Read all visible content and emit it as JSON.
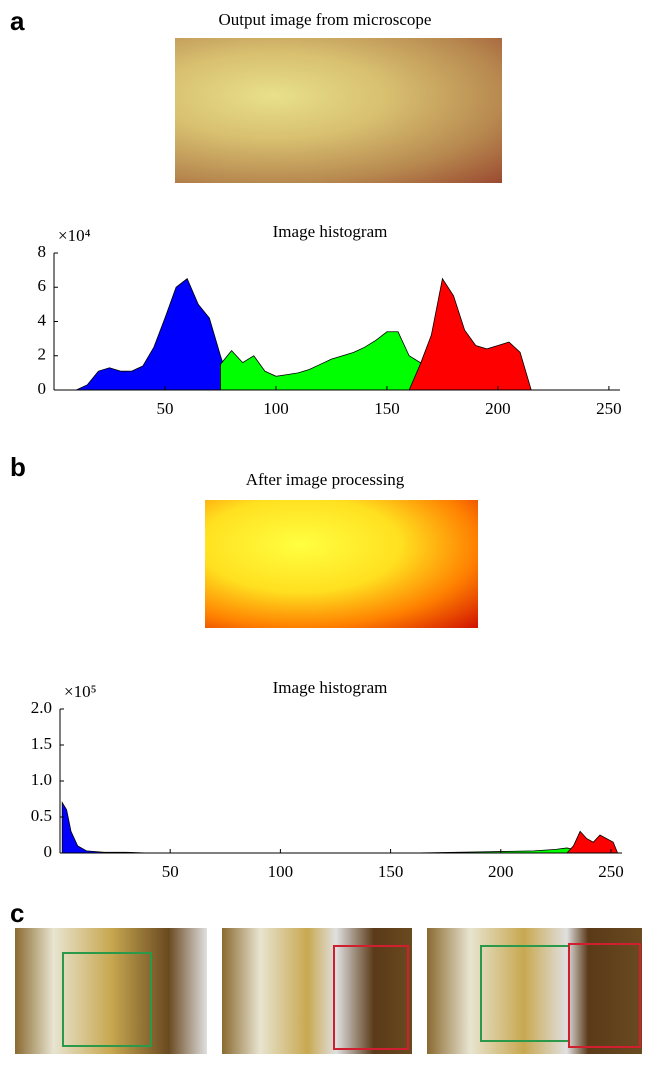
{
  "panel_labels": [
    "a",
    "b",
    "c"
  ],
  "image_captions": [
    "Output image from microscope",
    "After  image processing"
  ],
  "chart_data": [
    {
      "type": "area",
      "title": "Image histogram",
      "y_scale_label": "×10⁴",
      "x": [
        10,
        15,
        20,
        25,
        30,
        35,
        40,
        45,
        50,
        55,
        60,
        65,
        70,
        75,
        80,
        85,
        90,
        95,
        100,
        105,
        110,
        115,
        120,
        125,
        130,
        135,
        140,
        145,
        150,
        155,
        160,
        165,
        170,
        175,
        180,
        185,
        190,
        195,
        200,
        205,
        210,
        215
      ],
      "series": [
        {
          "color": "#0000ff",
          "values": [
            0,
            0.3,
            1.1,
            1.3,
            1.1,
            1.1,
            1.4,
            2.5,
            4.2,
            6.0,
            6.5,
            5.0,
            4.2,
            2.0,
            0,
            null,
            null,
            null,
            null,
            null,
            null,
            null,
            null,
            null,
            null,
            null,
            null,
            null,
            null,
            null,
            null,
            null,
            null,
            null,
            null,
            null,
            null,
            null,
            null,
            null,
            null,
            null
          ]
        },
        {
          "color": "#00ff00",
          "values": [
            null,
            null,
            null,
            null,
            null,
            null,
            null,
            null,
            null,
            null,
            null,
            null,
            null,
            1.5,
            2.3,
            1.6,
            2.0,
            1.1,
            0.8,
            0.9,
            1.0,
            1.2,
            1.5,
            1.8,
            2.0,
            2.2,
            2.5,
            2.9,
            3.4,
            3.4,
            2.0,
            1.6,
            1.2,
            0,
            null,
            null,
            null,
            null,
            null,
            null,
            null,
            null
          ]
        },
        {
          "color": "#ff0000",
          "values": [
            null,
            null,
            null,
            null,
            null,
            null,
            null,
            null,
            null,
            null,
            null,
            null,
            null,
            null,
            null,
            null,
            null,
            null,
            null,
            null,
            null,
            null,
            null,
            null,
            null,
            null,
            null,
            null,
            null,
            null,
            0,
            1.5,
            3.2,
            6.5,
            5.5,
            3.5,
            2.6,
            2.4,
            2.6,
            2.8,
            2.2,
            0
          ]
        }
      ],
      "xlim": [
        0,
        255
      ],
      "ylim": [
        0,
        8
      ],
      "xticks": [
        50,
        100,
        150,
        200,
        250
      ],
      "yticks": [
        0,
        2,
        4,
        6,
        8
      ]
    },
    {
      "type": "area",
      "title": "Image histogram",
      "y_scale_label": "×10⁵",
      "x": [
        1,
        3,
        5,
        8,
        12,
        20,
        30,
        40,
        160,
        180,
        200,
        215,
        225,
        230,
        233,
        236,
        239,
        242,
        245,
        248,
        251,
        253
      ],
      "series": [
        {
          "color": "#0000ff",
          "values": [
            0.7,
            0.6,
            0.3,
            0.1,
            0.03,
            0.01,
            0.01,
            0,
            null,
            null,
            null,
            null,
            null,
            null,
            null,
            null,
            null,
            null,
            null,
            null,
            null,
            null
          ]
        },
        {
          "color": "#00ff00",
          "values": [
            null,
            null,
            null,
            null,
            null,
            null,
            null,
            null,
            0,
            0.01,
            0.02,
            0.03,
            0.05,
            0.07,
            0.05,
            null,
            null,
            null,
            null,
            null,
            null,
            null
          ]
        },
        {
          "color": "#ff0000",
          "values": [
            null,
            null,
            null,
            null,
            null,
            null,
            null,
            null,
            null,
            null,
            null,
            null,
            null,
            0,
            0.1,
            0.3,
            0.2,
            0.15,
            0.25,
            0.2,
            0.15,
            0
          ]
        }
      ],
      "xlim": [
        0,
        255
      ],
      "ylim": [
        0,
        2
      ],
      "xticks": [
        50,
        100,
        150,
        200,
        250
      ],
      "yticks": [
        0,
        0.5,
        {
          "value": 1,
          "label": "1.0"
        },
        1.5,
        {
          "value": 2,
          "label": "2.0"
        }
      ]
    }
  ]
}
